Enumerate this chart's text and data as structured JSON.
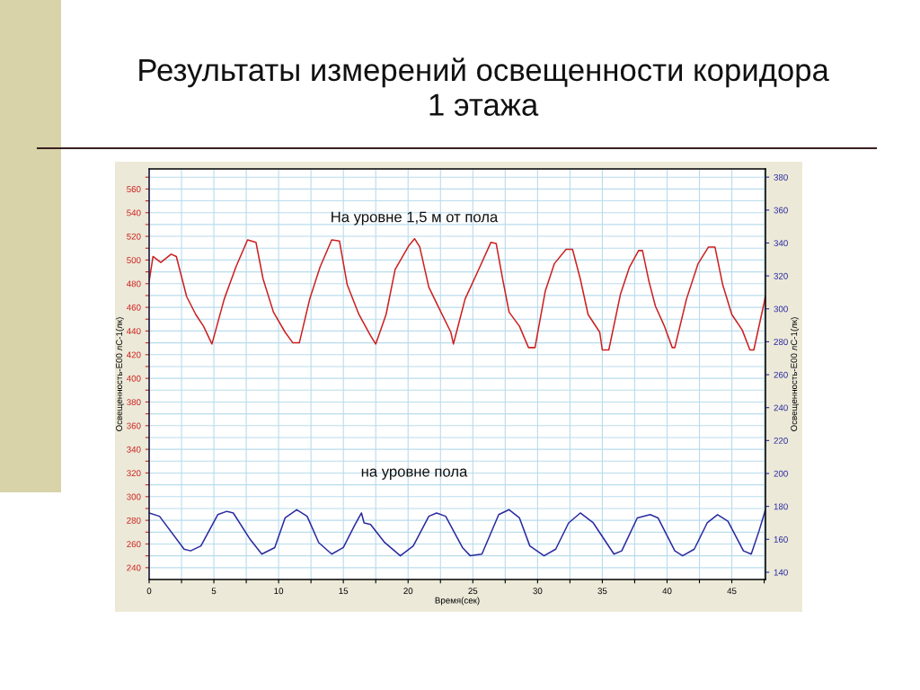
{
  "chart_data": {
    "type": "line",
    "title": "Результаты измерений освещенности коридора\n1 этажа",
    "xlabel": "Время(сек)",
    "ylabel": "Освещенность-E00 лС-1(лк)",
    "y2label": "Освещенность-E00 лС-1(лк)",
    "annotations": [
      "На уровне 1,5 м от пола",
      "на уровне пола"
    ],
    "xlim": [
      0,
      47.6
    ],
    "xticks": [
      0,
      {
        "value": 2.5,
        "label": null
      },
      5,
      {
        "value": 7.5,
        "label": null
      },
      10,
      {
        "value": 12.5,
        "label": null
      },
      15,
      {
        "value": 17.5,
        "label": null
      },
      20,
      {
        "value": 22.5,
        "label": null
      },
      25,
      {
        "value": 27.5,
        "label": null
      },
      30,
      {
        "value": 32.5,
        "label": null
      },
      35,
      {
        "value": 37.5,
        "label": null
      },
      40,
      {
        "value": 42.5,
        "label": null
      },
      45,
      {
        "value": 47.5,
        "label": null
      }
    ],
    "ylim": [
      230,
      577
    ],
    "yticks": [
      240,
      {
        "value": 250,
        "label": null
      },
      260,
      {
        "value": 270,
        "label": null
      },
      280,
      {
        "value": 290,
        "label": null
      },
      300,
      {
        "value": 310,
        "label": null
      },
      320,
      {
        "value": 330,
        "label": null
      },
      340,
      {
        "value": 350,
        "label": null
      },
      360,
      {
        "value": 370,
        "label": null
      },
      380,
      {
        "value": 390,
        "label": null
      },
      400,
      {
        "value": 410,
        "label": null
      },
      420,
      {
        "value": 430,
        "label": null
      },
      440,
      {
        "value": 450,
        "label": null
      },
      460,
      {
        "value": 470,
        "label": null
      },
      480,
      {
        "value": 490,
        "label": null
      },
      500,
      {
        "value": 510,
        "label": null
      },
      520,
      {
        "value": 530,
        "label": null
      },
      540,
      {
        "value": 550,
        "label": null
      },
      560,
      {
        "value": 570,
        "label": null
      }
    ],
    "y2lim": [
      135.6,
      385
    ],
    "y2ticks": [
      140,
      160,
      180,
      200,
      220,
      240,
      260,
      280,
      300,
      320,
      340,
      360,
      380
    ],
    "grid": true,
    "marker": "none",
    "line_style": "solid",
    "series": [
      {
        "color": "#cc2020",
        "x": [
          0,
          0.3,
          0.9,
          1.7,
          2.1,
          2.9,
          3.6,
          4.2,
          4.85,
          5.8,
          6.7,
          7.6,
          8.25,
          8.8,
          9.6,
          10.5,
          11.1,
          11.6,
          12.4,
          13.2,
          14.1,
          14.7,
          15.3,
          16.2,
          17.1,
          17.5,
          18.3,
          19,
          20.05,
          20.5,
          20.9,
          21.6,
          22.4,
          23.3,
          23.5,
          24.4,
          25.45,
          26.4,
          26.8,
          27.3,
          27.8,
          28.6,
          29.3,
          29.8,
          30.6,
          31.3,
          32.2,
          32.7,
          33.3,
          33.9,
          34.8,
          35.0,
          35.5,
          36.4,
          37.1,
          37.8,
          38.1,
          38.6,
          39.1,
          39.8,
          40.4,
          40.6,
          41.5,
          42.4,
          43.2,
          43.7,
          44.3,
          45,
          45.8,
          46.4,
          46.7,
          47.6
        ],
        "values": [
          482,
          503,
          498,
          505,
          503,
          469,
          454,
          444,
          429,
          467,
          494,
          517,
          515,
          484,
          456,
          439,
          430,
          430,
          467,
          494,
          517,
          516,
          479,
          454,
          436,
          429,
          454,
          492,
          512,
          518,
          511,
          477,
          459,
          439,
          429,
          467,
          492,
          515,
          514,
          484,
          456,
          444,
          426,
          426,
          474,
          497,
          509,
          509,
          484,
          454,
          439,
          424,
          424,
          471,
          494,
          508,
          508,
          482,
          461,
          444,
          426,
          426,
          467,
          497,
          511,
          511,
          479,
          454,
          441,
          424,
          424,
          469
        ]
      },
      {
        "color": "#2a2aa0",
        "axis": "y2",
        "x": [
          0,
          0.8,
          2.7,
          3.2,
          4,
          5.3,
          6.0,
          6.5,
          7.8,
          8.7,
          9.7,
          10.5,
          11.4,
          12.2,
          13.1,
          14.1,
          15,
          15.9,
          16.4,
          16.6,
          17.1,
          18.2,
          19.4,
          20.4,
          21.6,
          22.2,
          22.9,
          24.2,
          24.8,
          25.7,
          27,
          27.8,
          28.6,
          29.4,
          30.5,
          31.4,
          32.4,
          33.3,
          34.3,
          35.9,
          36.5,
          37.7,
          38.7,
          39.3,
          40.6,
          41.2,
          42.1,
          43.1,
          43.9,
          44.7,
          45.9,
          46.5,
          47.1,
          47.6
        ],
        "values": [
          176,
          174,
          154,
          153,
          156,
          175,
          177,
          176,
          160,
          151,
          155,
          173,
          178,
          174,
          158,
          151,
          155,
          169,
          176,
          170,
          169,
          158,
          150,
          156,
          174,
          176,
          174,
          155,
          150,
          151,
          175,
          178,
          173,
          156,
          150,
          154,
          170,
          176,
          170,
          151,
          153,
          173,
          175,
          173,
          153,
          150,
          154,
          170,
          175,
          171,
          153,
          151,
          165,
          178
        ]
      }
    ]
  }
}
